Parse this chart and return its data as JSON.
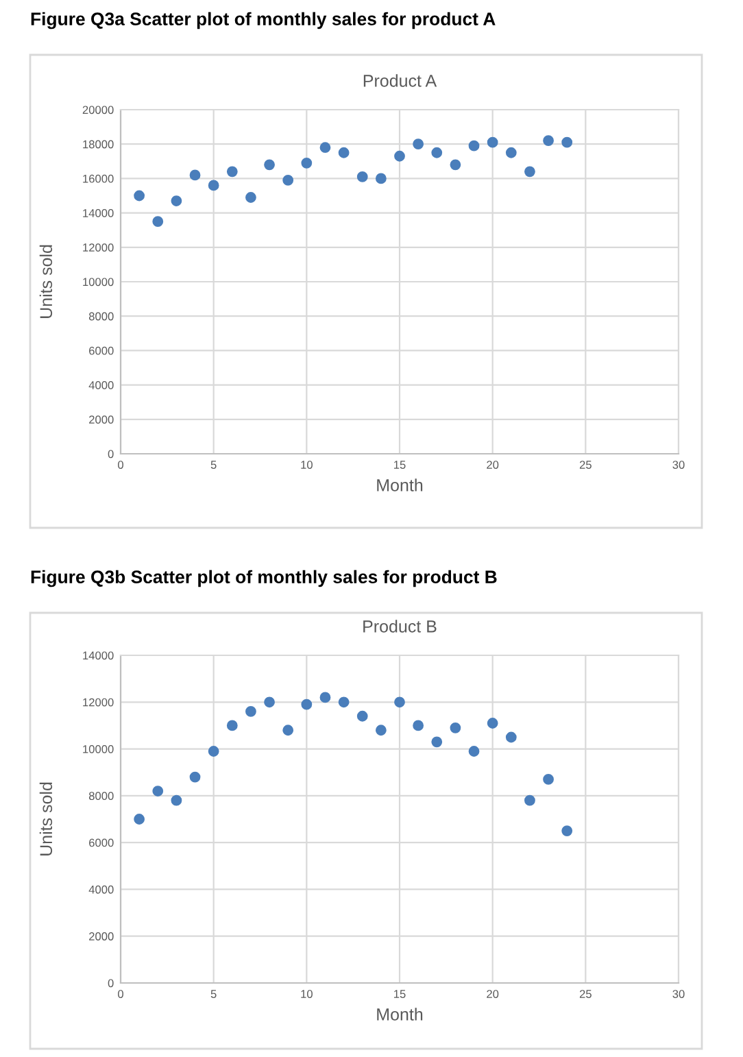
{
  "chart_data": [
    {
      "type": "scatter",
      "title": "Figure Q3a Scatter plot of monthly sales for product A",
      "subtitle": "Product A",
      "xlabel": "Month",
      "ylabel": "Units sold",
      "x": [
        1,
        2,
        3,
        4,
        5,
        6,
        7,
        8,
        9,
        10,
        11,
        12,
        13,
        14,
        15,
        16,
        17,
        18,
        19,
        20,
        21,
        22,
        23,
        24
      ],
      "series": [
        {
          "color": "#4a7ebb",
          "values": [
            15000,
            13500,
            14700,
            16200,
            15600,
            16400,
            14900,
            16800,
            15900,
            16900,
            17800,
            17500,
            16100,
            16000,
            17300,
            18000,
            17500,
            16800,
            17900,
            18100,
            17500,
            16400,
            18200,
            18100
          ]
        }
      ],
      "xlim": [
        0,
        30
      ],
      "xticks": [
        0,
        5,
        10,
        15,
        20,
        25,
        30
      ],
      "ylim": [
        0,
        20000
      ],
      "yticks": [
        0,
        2000,
        4000,
        6000,
        8000,
        10000,
        12000,
        14000,
        16000,
        18000,
        20000
      ],
      "grid": true,
      "marker": "circle"
    },
    {
      "type": "scatter",
      "title": "Figure Q3b Scatter plot of monthly sales for product B",
      "subtitle": "Product B",
      "xlabel": "Month",
      "ylabel": "Units sold",
      "x": [
        1,
        2,
        3,
        4,
        5,
        6,
        7,
        8,
        9,
        10,
        11,
        12,
        13,
        14,
        15,
        16,
        17,
        18,
        19,
        20,
        21,
        22,
        23,
        24
      ],
      "series": [
        {
          "color": "#4a7ebb",
          "values": [
            7000,
            8200,
            7800,
            8800,
            9900,
            11000,
            11600,
            12000,
            10800,
            11900,
            12200,
            12000,
            11400,
            10800,
            12000,
            11000,
            10300,
            10900,
            9900,
            11100,
            10500,
            7800,
            8700,
            6500
          ]
        }
      ],
      "xlim": [
        0,
        30
      ],
      "xticks": [
        0,
        5,
        10,
        15,
        20,
        25,
        30
      ],
      "ylim": [
        0,
        14000
      ],
      "yticks": [
        0,
        2000,
        4000,
        6000,
        8000,
        10000,
        12000,
        14000
      ],
      "grid": true,
      "marker": "circle"
    }
  ]
}
